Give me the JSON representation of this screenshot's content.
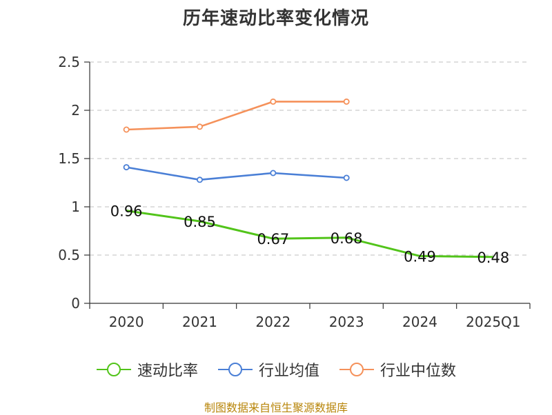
{
  "chart_data": {
    "type": "line",
    "title": "历年速动比率变化情况",
    "categories": [
      "2020",
      "2021",
      "2022",
      "2023",
      "2024",
      "2025Q1"
    ],
    "ylim": [
      0,
      2.5
    ],
    "yticks": [
      "0",
      "0.5",
      "1",
      "1.5",
      "2",
      "2.5"
    ],
    "grid": true,
    "legend_position": "bottom",
    "series": [
      {
        "name": "速动比率",
        "color": "#52c41a",
        "values": [
          0.96,
          0.85,
          0.67,
          0.68,
          0.49,
          0.48
        ],
        "labels": [
          "0.96",
          "0.85",
          "0.67",
          "0.68",
          "0.49",
          "0.48"
        ]
      },
      {
        "name": "行业均值",
        "color": "#4a7fd6",
        "values": [
          1.41,
          1.28,
          1.35,
          1.3,
          null,
          null
        ]
      },
      {
        "name": "行业中位数",
        "color": "#f5915a",
        "values": [
          1.8,
          1.83,
          2.09,
          2.09,
          null,
          null
        ]
      }
    ]
  },
  "source": "制图数据来自恒生聚源数据库"
}
